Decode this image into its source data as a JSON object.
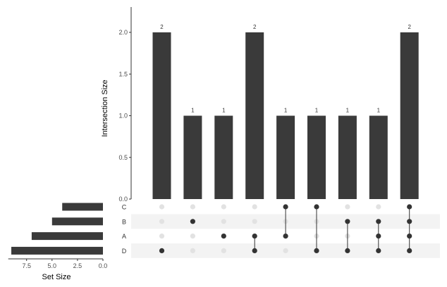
{
  "chart_data": {
    "type": "upset",
    "sets": [
      "C",
      "B",
      "A",
      "D"
    ],
    "set_sizes": [
      4,
      5,
      7,
      9
    ],
    "set_size_axis": {
      "label": "Set Size",
      "ticks": [
        "7.5",
        "5.0",
        "2.5",
        "0.0"
      ],
      "tick_values": [
        7.5,
        5.0,
        2.5,
        0.0
      ],
      "reversed": true
    },
    "intersection_axis": {
      "label": "Intersection Size",
      "ticks": [
        "0.0",
        "0.5",
        "1.0",
        "1.5",
        "2.0"
      ],
      "tick_values": [
        0,
        0.5,
        1.0,
        1.5,
        2.0
      ],
      "ylim": [
        0,
        2.2
      ]
    },
    "intersections": [
      {
        "sets": [
          "D"
        ],
        "size": 2,
        "label": "2"
      },
      {
        "sets": [
          "B"
        ],
        "size": 1,
        "label": "1"
      },
      {
        "sets": [
          "A"
        ],
        "size": 1,
        "label": "1"
      },
      {
        "sets": [
          "A",
          "D"
        ],
        "size": 2,
        "label": "2"
      },
      {
        "sets": [
          "C",
          "A"
        ],
        "size": 1,
        "label": "1"
      },
      {
        "sets": [
          "C",
          "D"
        ],
        "size": 1,
        "label": "1"
      },
      {
        "sets": [
          "B",
          "D"
        ],
        "size": 1,
        "label": "1"
      },
      {
        "sets": [
          "B",
          "A",
          "D"
        ],
        "size": 1,
        "label": "1"
      },
      {
        "sets": [
          "C",
          "B",
          "A",
          "D"
        ],
        "size": 2,
        "label": "2"
      }
    ],
    "colors": {
      "bar": "#3a3a3a",
      "dot_active": "#333333",
      "dot_inactive": "#e2e2e2",
      "stripe": "#f3f3f3"
    },
    "grid": false
  }
}
